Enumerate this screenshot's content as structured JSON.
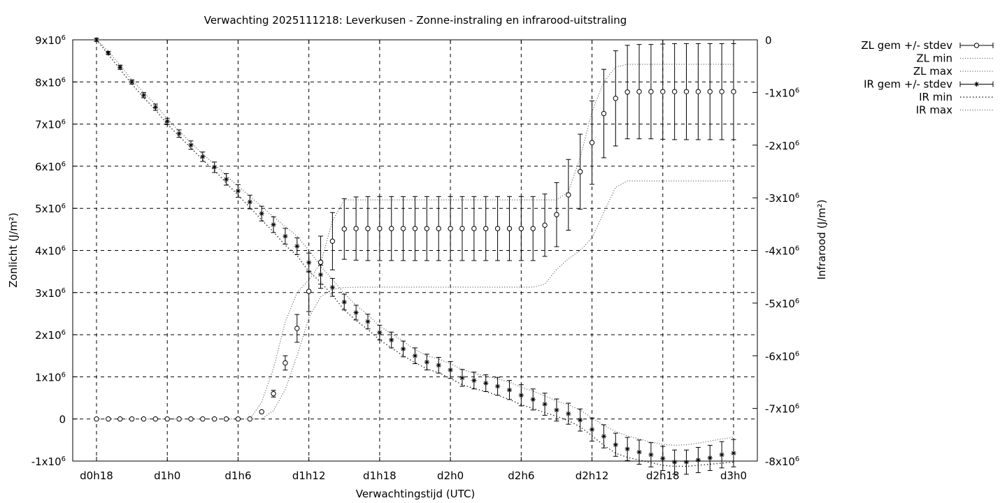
{
  "chart_data": {
    "type": "line",
    "title": "Verwachting 2025111218: Leverkusen - Zonne-instraling en infrarood-uitstraling",
    "xlabel": "Verwachtingstijd (UTC)",
    "ylabel": "Zonlicht (J/m²)",
    "y2label": "Infrarood (J/m²)",
    "x_unit": "hours",
    "xlim": [
      18,
      72
    ],
    "ylim": [
      -1000000,
      9000000
    ],
    "y2lim": [
      -8000000,
      0
    ],
    "x_ticks": [
      {
        "x": 18,
        "label": "d0h18"
      },
      {
        "x": 24,
        "label": "d1h0"
      },
      {
        "x": 30,
        "label": "d1h6"
      },
      {
        "x": 36,
        "label": "d1h12"
      },
      {
        "x": 42,
        "label": "d1h18"
      },
      {
        "x": 48,
        "label": "d2h0"
      },
      {
        "x": 54,
        "label": "d2h6"
      },
      {
        "x": 60,
        "label": "d2h12"
      },
      {
        "x": 66,
        "label": "d2h18"
      },
      {
        "x": 72,
        "label": "d3h0"
      }
    ],
    "y_ticks": [
      {
        "v": 9000000,
        "base": "9x10",
        "exp": "6"
      },
      {
        "v": 8000000,
        "base": "8x10",
        "exp": "6"
      },
      {
        "v": 7000000,
        "base": "7x10",
        "exp": "6"
      },
      {
        "v": 6000000,
        "base": "6x10",
        "exp": "6"
      },
      {
        "v": 5000000,
        "base": "5x10",
        "exp": "6"
      },
      {
        "v": 4000000,
        "base": "4x10",
        "exp": "6"
      },
      {
        "v": 3000000,
        "base": "3x10",
        "exp": "6"
      },
      {
        "v": 2000000,
        "base": "2x10",
        "exp": "6"
      },
      {
        "v": 1000000,
        "base": "1x10",
        "exp": "6"
      },
      {
        "v": 0,
        "base": "0",
        "exp": ""
      },
      {
        "v": -1000000,
        "base": "-1x10",
        "exp": "6"
      }
    ],
    "y2_ticks": [
      {
        "v": 0,
        "base": "0",
        "exp": ""
      },
      {
        "v": -1000000,
        "base": "-1x10",
        "exp": "6"
      },
      {
        "v": -2000000,
        "base": "-2x10",
        "exp": "6"
      },
      {
        "v": -3000000,
        "base": "-3x10",
        "exp": "6"
      },
      {
        "v": -4000000,
        "base": "-4x10",
        "exp": "6"
      },
      {
        "v": -5000000,
        "base": "-5x10",
        "exp": "6"
      },
      {
        "v": -6000000,
        "base": "-6x10",
        "exp": "6"
      },
      {
        "v": -7000000,
        "base": "-7x10",
        "exp": "6"
      },
      {
        "v": -8000000,
        "base": "-8x10",
        "exp": "6"
      }
    ],
    "grid": true,
    "legend_position": "top-right, outside plot",
    "legend": [
      {
        "label": "ZL gem +/- stdev",
        "style": "errorbar-circle"
      },
      {
        "label": "ZL min",
        "style": "dotted"
      },
      {
        "label": "ZL max",
        "style": "dotted"
      },
      {
        "label": "IR gem +/- stdev",
        "style": "errorbar-star"
      },
      {
        "label": "IR min",
        "style": "dotted-bold"
      },
      {
        "label": "IR max",
        "style": "dotted"
      }
    ],
    "series": [
      {
        "name": "ZL gem +/- stdev",
        "axis": "y",
        "marker": "circle",
        "x": [
          18,
          19,
          20,
          21,
          22,
          23,
          24,
          25,
          26,
          27,
          28,
          29,
          30,
          31,
          32,
          33,
          34,
          35,
          36,
          37,
          38,
          39,
          40,
          41,
          42,
          43,
          44,
          45,
          46,
          47,
          48,
          49,
          50,
          51,
          52,
          53,
          54,
          55,
          56,
          57,
          58,
          59,
          60,
          61,
          62,
          63,
          64,
          65,
          66,
          67,
          68,
          69,
          70,
          71,
          72
        ],
        "mean": [
          0,
          0,
          0,
          0,
          0,
          0,
          0,
          0,
          0,
          0,
          0,
          0,
          0,
          0,
          170000,
          600000,
          1330000,
          2150000,
          3030000,
          3720000,
          4220000,
          4510000,
          4520000,
          4520000,
          4520000,
          4520000,
          4520000,
          4520000,
          4520000,
          4520000,
          4520000,
          4520000,
          4520000,
          4520000,
          4520000,
          4520000,
          4520000,
          4520000,
          4600000,
          4850000,
          5320000,
          5870000,
          6560000,
          7250000,
          7610000,
          7760000,
          7770000,
          7770000,
          7770000,
          7770000,
          7770000,
          7770000,
          7770000,
          7770000,
          7770000
        ],
        "stdev": [
          0,
          0,
          0,
          0,
          0,
          0,
          0,
          0,
          0,
          0,
          0,
          0,
          0,
          0,
          0,
          80000,
          170000,
          330000,
          480000,
          620000,
          680000,
          720000,
          750000,
          760000,
          760000,
          760000,
          760000,
          760000,
          760000,
          760000,
          760000,
          760000,
          760000,
          760000,
          760000,
          760000,
          760000,
          760000,
          740000,
          760000,
          840000,
          890000,
          990000,
          1050000,
          1130000,
          1110000,
          1120000,
          1120000,
          1130000,
          1140000,
          1140000,
          1140000,
          1140000,
          1140000,
          1140000
        ]
      },
      {
        "name": "ZL min",
        "axis": "y",
        "x": [
          18,
          19,
          20,
          21,
          22,
          23,
          24,
          25,
          26,
          27,
          28,
          29,
          30,
          31,
          32,
          33,
          34,
          35,
          36,
          37,
          38,
          39,
          40,
          41,
          42,
          43,
          44,
          45,
          46,
          47,
          48,
          49,
          50,
          51,
          52,
          53,
          54,
          55,
          56,
          57,
          58,
          59,
          60,
          61,
          62,
          63,
          64,
          65,
          66,
          67,
          68,
          69,
          70,
          71,
          72
        ],
        "values": [
          0,
          0,
          0,
          0,
          0,
          0,
          0,
          0,
          0,
          0,
          0,
          0,
          0,
          0,
          0,
          200000,
          700000,
          1500000,
          2400000,
          2900000,
          3080000,
          3120000,
          3130000,
          3130000,
          3130000,
          3130000,
          3130000,
          3130000,
          3130000,
          3130000,
          3130000,
          3130000,
          3130000,
          3130000,
          3130000,
          3130000,
          3130000,
          3130000,
          3200000,
          3550000,
          3800000,
          4000000,
          4300000,
          4900000,
          5500000,
          5650000,
          5650000,
          5650000,
          5650000,
          5650000,
          5650000,
          5650000,
          5650000,
          5650000,
          5650000
        ]
      },
      {
        "name": "ZL max",
        "axis": "y",
        "x": [
          18,
          19,
          20,
          21,
          22,
          23,
          24,
          25,
          26,
          27,
          28,
          29,
          30,
          31,
          32,
          33,
          34,
          35,
          36,
          37,
          38,
          39,
          40,
          41,
          42,
          43,
          44,
          45,
          46,
          47,
          48,
          49,
          50,
          51,
          52,
          53,
          54,
          55,
          56,
          57,
          58,
          59,
          60,
          61,
          62,
          63,
          64,
          65,
          66,
          67,
          68,
          69,
          70,
          71,
          72
        ],
        "values": [
          0,
          0,
          0,
          0,
          0,
          0,
          0,
          0,
          0,
          0,
          0,
          0,
          0,
          0,
          400000,
          1200000,
          2300000,
          3000000,
          3300000,
          3700000,
          4700000,
          5200000,
          5200000,
          5200000,
          5200000,
          5200000,
          5200000,
          5200000,
          5200000,
          5200000,
          5200000,
          5200000,
          5200000,
          5200000,
          5200000,
          5200000,
          5200000,
          5200000,
          5200000,
          5200000,
          5400000,
          6200000,
          7300000,
          8000000,
          8350000,
          8420000,
          8420000,
          8420000,
          8420000,
          8420000,
          8420000,
          8420000,
          8420000,
          8420000,
          8420000
        ]
      },
      {
        "name": "IR gem +/- stdev",
        "axis": "y2",
        "marker": "star",
        "x": [
          18,
          19,
          20,
          21,
          22,
          23,
          24,
          25,
          26,
          27,
          28,
          29,
          30,
          31,
          32,
          33,
          34,
          35,
          36,
          37,
          38,
          39,
          40,
          41,
          42,
          43,
          44,
          45,
          46,
          47,
          48,
          49,
          50,
          51,
          52,
          53,
          54,
          55,
          56,
          57,
          58,
          59,
          60,
          61,
          62,
          63,
          64,
          65,
          66,
          67,
          68,
          69,
          70,
          71,
          72
        ],
        "mean": [
          0,
          -250000,
          -520000,
          -800000,
          -1050000,
          -1280000,
          -1550000,
          -1780000,
          -2000000,
          -2220000,
          -2420000,
          -2650000,
          -2870000,
          -3080000,
          -3300000,
          -3510000,
          -3730000,
          -3920000,
          -4230000,
          -4460000,
          -4700000,
          -4980000,
          -5180000,
          -5350000,
          -5560000,
          -5700000,
          -5870000,
          -6000000,
          -6120000,
          -6180000,
          -6270000,
          -6420000,
          -6470000,
          -6520000,
          -6580000,
          -6650000,
          -6750000,
          -6830000,
          -6920000,
          -7030000,
          -7100000,
          -7220000,
          -7400000,
          -7530000,
          -7690000,
          -7770000,
          -7830000,
          -7880000,
          -7950000,
          -8020000,
          -8020000,
          -7980000,
          -7940000,
          -7880000,
          -7850000
        ],
        "stdev": [
          30000,
          30000,
          40000,
          40000,
          50000,
          60000,
          60000,
          70000,
          80000,
          90000,
          100000,
          110000,
          120000,
          130000,
          140000,
          150000,
          150000,
          160000,
          180000,
          180000,
          170000,
          150000,
          140000,
          140000,
          140000,
          150000,
          150000,
          150000,
          150000,
          150000,
          160000,
          160000,
          160000,
          160000,
          170000,
          180000,
          200000,
          200000,
          210000,
          210000,
          200000,
          210000,
          220000,
          220000,
          220000,
          220000,
          230000,
          230000,
          230000,
          230000,
          230000,
          240000,
          240000,
          250000,
          260000
        ]
      },
      {
        "name": "IR min",
        "axis": "y2",
        "x": [
          18,
          19,
          20,
          21,
          22,
          23,
          24,
          25,
          26,
          27,
          28,
          29,
          30,
          31,
          32,
          33,
          34,
          35,
          36,
          37,
          38,
          39,
          40,
          41,
          42,
          43,
          44,
          45,
          46,
          47,
          48,
          49,
          50,
          51,
          52,
          53,
          54,
          55,
          56,
          57,
          58,
          59,
          60,
          61,
          62,
          63,
          64,
          65,
          66,
          67,
          68,
          69,
          70,
          71,
          72
        ],
        "values": [
          0,
          -280000,
          -560000,
          -840000,
          -1100000,
          -1330000,
          -1600000,
          -1830000,
          -2050000,
          -2280000,
          -2480000,
          -2720000,
          -2950000,
          -3180000,
          -3420000,
          -3650000,
          -3900000,
          -4100000,
          -4400000,
          -4600000,
          -4850000,
          -5130000,
          -5330000,
          -5500000,
          -5700000,
          -5850000,
          -6000000,
          -6130000,
          -6250000,
          -6320000,
          -6430000,
          -6550000,
          -6620000,
          -6680000,
          -6750000,
          -6830000,
          -6930000,
          -7000000,
          -7080000,
          -7150000,
          -7230000,
          -7350000,
          -7520000,
          -7700000,
          -7850000,
          -7930000,
          -7980000,
          -8030000,
          -8080000,
          -8100000,
          -8100000,
          -8080000,
          -8060000,
          -8040000,
          -8020000
        ]
      },
      {
        "name": "IR max",
        "axis": "y2",
        "x": [
          18,
          19,
          20,
          21,
          22,
          23,
          24,
          25,
          26,
          27,
          28,
          29,
          30,
          31,
          32,
          33,
          34,
          35,
          36,
          37,
          38,
          39,
          40,
          41,
          42,
          43,
          44,
          45,
          46,
          47,
          48,
          49,
          50,
          51,
          52,
          53,
          54,
          55,
          56,
          57,
          58,
          59,
          60,
          61,
          62,
          63,
          64,
          65,
          66,
          67,
          68,
          69,
          70,
          71,
          72
        ],
        "values": [
          0,
          -220000,
          -480000,
          -760000,
          -1000000,
          -1230000,
          -1500000,
          -1730000,
          -1950000,
          -2170000,
          -2360000,
          -2580000,
          -2780000,
          -2970000,
          -3170000,
          -3360000,
          -3550000,
          -3730000,
          -4000000,
          -4300000,
          -4550000,
          -4820000,
          -5040000,
          -5220000,
          -5440000,
          -5580000,
          -5730000,
          -5880000,
          -6000000,
          -6060000,
          -6150000,
          -6260000,
          -6330000,
          -6390000,
          -6440000,
          -6500000,
          -6600000,
          -6670000,
          -6760000,
          -6860000,
          -6930000,
          -7030000,
          -7180000,
          -7320000,
          -7440000,
          -7520000,
          -7580000,
          -7640000,
          -7680000,
          -7700000,
          -7690000,
          -7660000,
          -7620000,
          -7580000,
          -7550000
        ]
      }
    ]
  }
}
